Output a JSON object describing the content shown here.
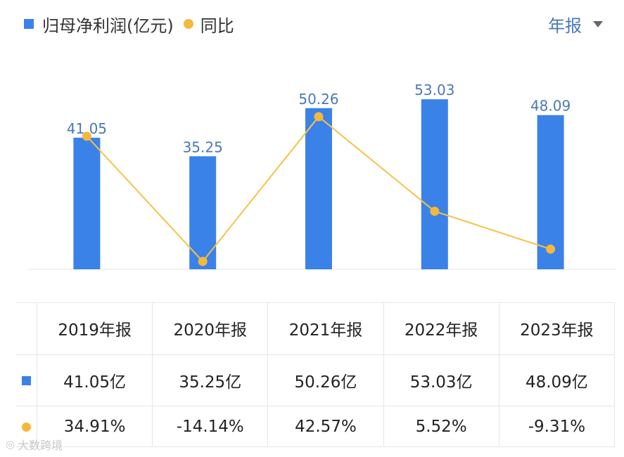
{
  "legend": {
    "bar_label": "归母净利润(亿元)",
    "line_label": "同比"
  },
  "period_selector": {
    "label": "年报"
  },
  "colors": {
    "bar": "#3b82e8",
    "line": "#f5c24a",
    "point": "#f5b83a",
    "positive": "#d9534f",
    "negative": "#2f9e6e",
    "label": "#4a78b8"
  },
  "chart_data": {
    "type": "bar",
    "categories": [
      "2019年报",
      "2020年报",
      "2021年报",
      "2022年报",
      "2023年报"
    ],
    "series": [
      {
        "name": "归母净利润(亿元)",
        "type": "bar",
        "values": [
          41.05,
          35.25,
          50.26,
          53.03,
          48.09
        ]
      },
      {
        "name": "同比",
        "type": "line",
        "values": [
          34.91,
          -14.14,
          42.57,
          5.52,
          -9.31
        ]
      }
    ],
    "data_labels": [
      "41.05",
      "35.25",
      "50.26",
      "53.03",
      "48.09"
    ],
    "ylim": [
      0,
      60
    ],
    "grid": false,
    "legend_position": "top-left"
  },
  "table": {
    "headers": [
      "2019年报",
      "2020年报",
      "2021年报",
      "2022年报",
      "2023年报"
    ],
    "profit_row": [
      "41.05亿",
      "35.25亿",
      "50.26亿",
      "53.03亿",
      "48.09亿"
    ],
    "yoy_row": [
      "34.91%",
      "-14.14%",
      "42.57%",
      "5.52%",
      "-9.31%"
    ]
  },
  "watermark": {
    "text": "大数跨境",
    "logo": "◎"
  }
}
